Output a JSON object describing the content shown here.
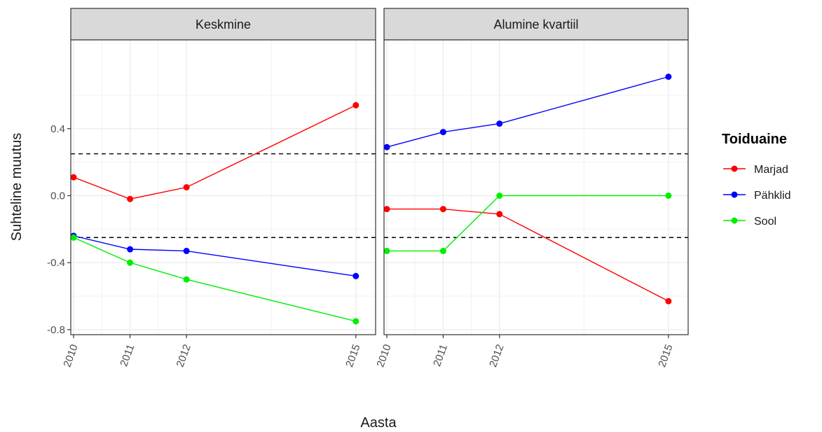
{
  "chart_data": {
    "type": "line",
    "xlabel": "Aasta",
    "ylabel": "Suhteline muutus",
    "x": [
      2010,
      2011,
      2012,
      2015
    ],
    "x_tick_labels": [
      "2010",
      "2011",
      "2012",
      "2015"
    ],
    "xlim": [
      2009.95,
      2015.35
    ],
    "ylim": [
      -0.83,
      0.93
    ],
    "y_ticks": [
      -0.8,
      -0.4,
      0.0,
      0.4
    ],
    "y_tick_labels": [
      "-0.8",
      "-0.4",
      "0.0",
      "0.4"
    ],
    "reference_lines": [
      0.25,
      -0.25
    ],
    "grid": true,
    "legend": {
      "title": "Toiduaine",
      "position": "right",
      "entries": [
        {
          "name": "Marjad",
          "color": "#ff0000"
        },
        {
          "name": "Pähklid",
          "color": "#0000ff"
        },
        {
          "name": "Sool",
          "color": "#00ee00"
        }
      ]
    },
    "panels": [
      {
        "title": "Keskmine",
        "series": [
          {
            "name": "Marjad",
            "color": "#ff0000",
            "values": [
              0.11,
              -0.02,
              0.05,
              0.54
            ]
          },
          {
            "name": "Pähklid",
            "color": "#0000ff",
            "values": [
              -0.24,
              -0.32,
              -0.33,
              -0.48
            ]
          },
          {
            "name": "Sool",
            "color": "#00ee00",
            "values": [
              -0.25,
              -0.4,
              -0.5,
              -0.75
            ]
          }
        ]
      },
      {
        "title": "Alumine kvartiil",
        "series": [
          {
            "name": "Marjad",
            "color": "#ff0000",
            "values": [
              -0.08,
              -0.08,
              -0.11,
              -0.63
            ]
          },
          {
            "name": "Pähklid",
            "color": "#0000ff",
            "values": [
              0.29,
              0.38,
              0.43,
              0.71
            ]
          },
          {
            "name": "Sool",
            "color": "#00ee00",
            "values": [
              -0.33,
              -0.33,
              0.0,
              0.0
            ]
          }
        ]
      }
    ]
  }
}
